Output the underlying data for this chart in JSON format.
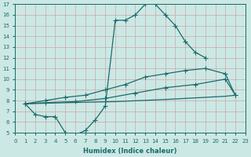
{
  "xlabel": "Humidex (Indice chaleur)",
  "bg_color": "#cce8e4",
  "grid_color": "#c8a8a8",
  "line_color": "#1a6b6b",
  "xlim": [
    0,
    23
  ],
  "ylim": [
    5,
    17
  ],
  "xticks": [
    0,
    1,
    2,
    3,
    4,
    5,
    6,
    7,
    8,
    9,
    10,
    11,
    12,
    13,
    14,
    15,
    16,
    17,
    18,
    19,
    20,
    21,
    22,
    23
  ],
  "yticks": [
    5,
    6,
    7,
    8,
    9,
    10,
    11,
    12,
    13,
    14,
    15,
    16,
    17
  ],
  "line1_x": [
    1,
    2,
    3,
    4,
    5,
    6,
    7,
    8,
    9,
    10,
    11,
    12,
    13,
    14,
    15,
    16,
    17,
    18,
    19
  ],
  "line1_y": [
    7.7,
    6.7,
    6.5,
    6.5,
    5.0,
    4.8,
    5.2,
    6.2,
    7.5,
    15.5,
    15.5,
    16.0,
    17.0,
    17.0,
    16.0,
    15.0,
    13.5,
    12.5,
    12.0
  ],
  "line2_x": [
    1,
    3,
    5,
    7,
    9,
    11,
    13,
    15,
    17,
    19,
    21,
    22
  ],
  "line2_y": [
    7.7,
    8.0,
    8.3,
    8.5,
    9.0,
    9.5,
    10.2,
    10.5,
    10.8,
    11.0,
    10.5,
    8.5
  ],
  "line3_x": [
    1,
    3,
    6,
    9,
    12,
    15,
    18,
    21,
    22
  ],
  "line3_y": [
    7.7,
    7.8,
    7.9,
    8.2,
    8.7,
    9.2,
    9.5,
    10.0,
    8.5
  ],
  "line4_x": [
    1,
    5,
    10,
    15,
    19,
    21,
    22
  ],
  "line4_y": [
    7.7,
    7.8,
    7.9,
    8.1,
    8.3,
    8.4,
    8.5
  ]
}
